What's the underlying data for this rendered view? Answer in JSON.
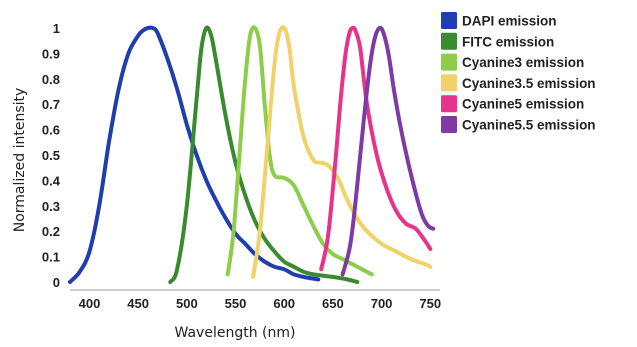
{
  "chart_data": {
    "type": "line",
    "xlabel": "Wavelength (nm)",
    "ylabel": "Normalized intensity",
    "xlim": [
      380,
      760
    ],
    "ylim": [
      0,
      1.0
    ],
    "x_ticks": [
      "400",
      "450",
      "500",
      "550",
      "600",
      "650",
      "700",
      "750"
    ],
    "y_ticks": [
      "0",
      "0.1",
      "0.2",
      "0.3",
      "0.4",
      "0.5",
      "0.6",
      "0.7",
      "0.8",
      "0.9",
      "1"
    ],
    "legend_position": "top-right",
    "series": [
      {
        "name": "DAPI emission",
        "color": "#1f3fb0",
        "points": [
          [
            380,
            0.0
          ],
          [
            390,
            0.04
          ],
          [
            400,
            0.12
          ],
          [
            410,
            0.3
          ],
          [
            420,
            0.55
          ],
          [
            430,
            0.76
          ],
          [
            440,
            0.9
          ],
          [
            450,
            0.97
          ],
          [
            455,
            0.99
          ],
          [
            460,
            1.0
          ],
          [
            465,
            1.0
          ],
          [
            470,
            0.98
          ],
          [
            480,
            0.88
          ],
          [
            490,
            0.76
          ],
          [
            500,
            0.62
          ],
          [
            510,
            0.5
          ],
          [
            520,
            0.4
          ],
          [
            530,
            0.32
          ],
          [
            540,
            0.25
          ],
          [
            550,
            0.19
          ],
          [
            560,
            0.15
          ],
          [
            570,
            0.11
          ],
          [
            580,
            0.08
          ],
          [
            590,
            0.06
          ],
          [
            600,
            0.05
          ],
          [
            610,
            0.03
          ],
          [
            620,
            0.02
          ],
          [
            635,
            0.01
          ]
        ]
      },
      {
        "name": "FITC emission",
        "color": "#3a8a2f",
        "points": [
          [
            483,
            0.0
          ],
          [
            490,
            0.05
          ],
          [
            500,
            0.3
          ],
          [
            510,
            0.72
          ],
          [
            515,
            0.92
          ],
          [
            520,
            1.0
          ],
          [
            525,
            0.97
          ],
          [
            530,
            0.87
          ],
          [
            540,
            0.65
          ],
          [
            550,
            0.47
          ],
          [
            560,
            0.34
          ],
          [
            570,
            0.24
          ],
          [
            580,
            0.17
          ],
          [
            590,
            0.12
          ],
          [
            600,
            0.08
          ],
          [
            610,
            0.06
          ],
          [
            620,
            0.04
          ],
          [
            630,
            0.03
          ],
          [
            650,
            0.02
          ],
          [
            665,
            0.01
          ],
          [
            675,
            0.0
          ]
        ]
      },
      {
        "name": "Cyanine3 emission",
        "color": "#8ccd4a",
        "points": [
          [
            542,
            0.03
          ],
          [
            548,
            0.2
          ],
          [
            555,
            0.55
          ],
          [
            560,
            0.8
          ],
          [
            565,
            0.97
          ],
          [
            570,
            1.0
          ],
          [
            575,
            0.93
          ],
          [
            580,
            0.7
          ],
          [
            585,
            0.5
          ],
          [
            590,
            0.42
          ],
          [
            600,
            0.41
          ],
          [
            610,
            0.38
          ],
          [
            620,
            0.3
          ],
          [
            630,
            0.22
          ],
          [
            640,
            0.15
          ],
          [
            650,
            0.11
          ],
          [
            660,
            0.09
          ],
          [
            670,
            0.07
          ],
          [
            680,
            0.05
          ],
          [
            690,
            0.03
          ]
        ]
      },
      {
        "name": "Cyanine3.5 emission",
        "color": "#f0d26a",
        "points": [
          [
            568,
            0.02
          ],
          [
            575,
            0.2
          ],
          [
            583,
            0.55
          ],
          [
            590,
            0.86
          ],
          [
            595,
            0.98
          ],
          [
            600,
            1.0
          ],
          [
            605,
            0.93
          ],
          [
            610,
            0.77
          ],
          [
            620,
            0.57
          ],
          [
            630,
            0.48
          ],
          [
            637,
            0.47
          ],
          [
            645,
            0.46
          ],
          [
            655,
            0.41
          ],
          [
            665,
            0.32
          ],
          [
            675,
            0.25
          ],
          [
            685,
            0.2
          ],
          [
            700,
            0.15
          ],
          [
            715,
            0.12
          ],
          [
            730,
            0.09
          ],
          [
            745,
            0.07
          ],
          [
            750,
            0.06
          ]
        ]
      },
      {
        "name": "Cyanine5 emission",
        "color": "#e8338b",
        "points": [
          [
            638,
            0.05
          ],
          [
            645,
            0.18
          ],
          [
            652,
            0.45
          ],
          [
            658,
            0.72
          ],
          [
            663,
            0.9
          ],
          [
            667,
            0.98
          ],
          [
            670,
            1.0
          ],
          [
            673,
            0.99
          ],
          [
            678,
            0.92
          ],
          [
            685,
            0.7
          ],
          [
            695,
            0.5
          ],
          [
            705,
            0.37
          ],
          [
            715,
            0.28
          ],
          [
            725,
            0.23
          ],
          [
            735,
            0.21
          ],
          [
            745,
            0.16
          ],
          [
            750,
            0.13
          ]
        ]
      },
      {
        "name": "Cyanine5.5 emission",
        "color": "#7f3ba5",
        "points": [
          [
            660,
            0.03
          ],
          [
            668,
            0.15
          ],
          [
            675,
            0.38
          ],
          [
            682,
            0.65
          ],
          [
            688,
            0.85
          ],
          [
            693,
            0.96
          ],
          [
            698,
            1.0
          ],
          [
            702,
            0.98
          ],
          [
            707,
            0.9
          ],
          [
            713,
            0.75
          ],
          [
            720,
            0.6
          ],
          [
            728,
            0.46
          ],
          [
            735,
            0.35
          ],
          [
            742,
            0.26
          ],
          [
            748,
            0.22
          ],
          [
            753,
            0.21
          ]
        ]
      }
    ]
  }
}
